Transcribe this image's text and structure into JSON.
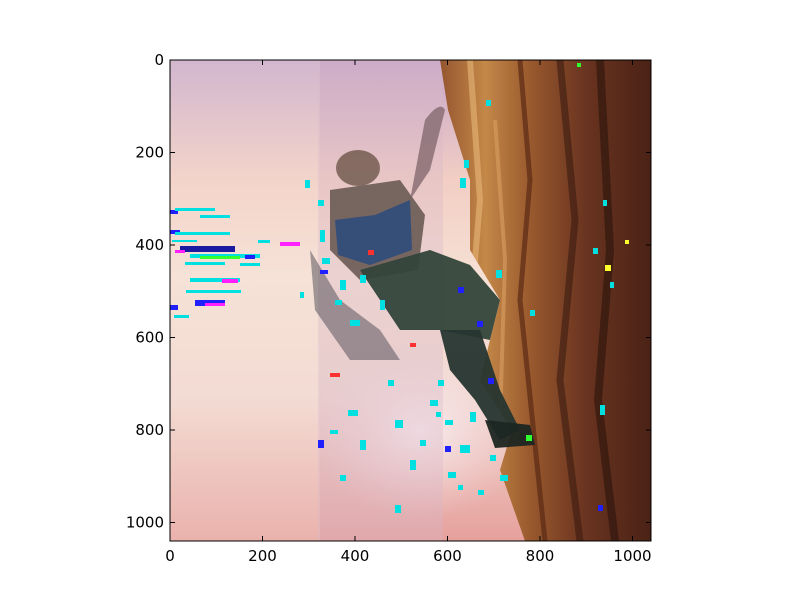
{
  "chart_data": {
    "type": "heatmap",
    "title": "",
    "xlabel": "",
    "ylabel": "",
    "xlim": [
      0,
      1040
    ],
    "ylim": [
      1040,
      0
    ],
    "y_inverted": true,
    "grid": false,
    "legend": "none",
    "x_ticks": [
      0,
      200,
      400,
      600,
      800,
      1000
    ],
    "y_ticks": [
      0,
      200,
      400,
      600,
      800,
      1000
    ],
    "image": {
      "content": "noisy reconstructed photo: figure climbing a rocky cliff face against a pink sky",
      "regions": [
        {
          "name": "sky",
          "x_range": [
            0,
            320
          ],
          "y_range": [
            0,
            1040
          ],
          "colors": [
            "#c8a8c8",
            "#f4d4c8",
            "#f6e2d6",
            "#e8a6a0"
          ]
        },
        {
          "name": "blurred-center",
          "x_range": [
            320,
            450
          ],
          "y_range": [
            0,
            1040
          ],
          "colors": [
            "#d6b4c4",
            "#e6c8cc"
          ]
        },
        {
          "name": "climber",
          "x_range": [
            300,
            620
          ],
          "y_range": [
            150,
            780
          ],
          "colors": [
            "#7a6658",
            "#2c4a78",
            "#3a4a40",
            "#1e2e2a"
          ]
        },
        {
          "name": "cliff",
          "x_range": [
            600,
            1040
          ],
          "y_range": [
            0,
            1040
          ],
          "colors": [
            "#7a4020",
            "#c08040",
            "#5a2a18",
            "#3a1a10"
          ]
        }
      ],
      "artifact_colors": [
        "#00e0e0",
        "#2020ff",
        "#ff20ff",
        "#ff3030",
        "#30ff30",
        "#ffff30"
      ]
    }
  }
}
